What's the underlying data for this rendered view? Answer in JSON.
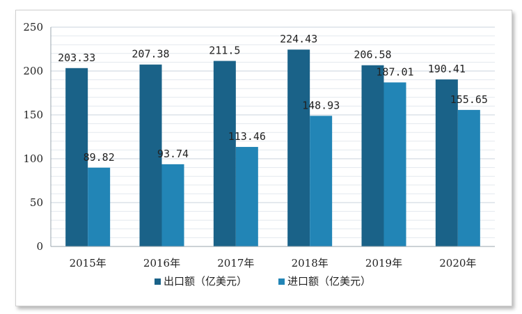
{
  "chart_data": {
    "type": "bar",
    "title": "",
    "xlabel": "",
    "ylabel": "",
    "categories": [
      "2015年",
      "2016年",
      "2017年",
      "2018年",
      "2019年",
      "2020年"
    ],
    "series": [
      {
        "name": "出口额（亿美元）",
        "values": [
          203.33,
          207.38,
          211.5,
          224.43,
          206.58,
          190.41
        ],
        "labels": [
          "203.33",
          "207.38",
          "211.5",
          "224.43",
          "206.58",
          "190.41"
        ],
        "color": "#1a6288"
      },
      {
        "name": "进口额（亿美元）",
        "values": [
          89.82,
          93.74,
          113.46,
          148.93,
          187.01,
          155.65
        ],
        "labels": [
          "89.82",
          "93.74",
          "113.46",
          "148.93",
          "187.01",
          "155.65"
        ],
        "color": "#2285b6"
      }
    ],
    "ylim": [
      0,
      250
    ],
    "yticks": [
      0,
      50,
      100,
      150,
      200,
      250
    ],
    "grid": true,
    "legend": "bottom"
  }
}
